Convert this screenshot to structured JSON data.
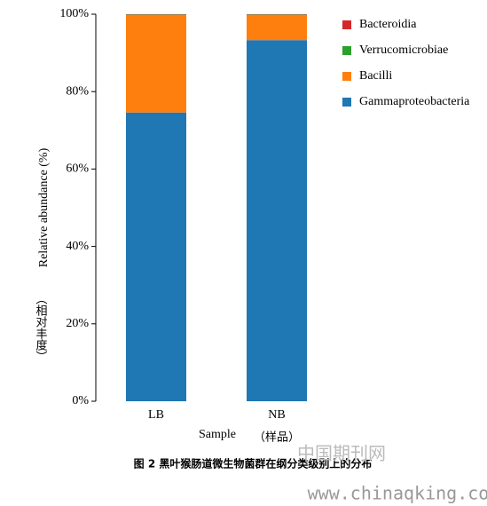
{
  "chart_data": {
    "type": "stacked_bar",
    "y_label": "Relative abundance (%)",
    "y_label_cn": "（相对丰度）",
    "x_label": "Sample",
    "x_label_cn": "（样品）",
    "categories": [
      "LB",
      "NB"
    ],
    "series": [
      {
        "name": "Gammaproteobacteria",
        "color": "#1f77b4",
        "values": [
          74.6,
          93.3
        ]
      },
      {
        "name": "Bacilli",
        "color": "#ff7f0e",
        "values": [
          25.2,
          6.5
        ]
      },
      {
        "name": "Verrucomicrobiae",
        "color": "#2ca02c",
        "values": [
          0.1,
          0.1
        ]
      },
      {
        "name": "Bacteroidia",
        "color": "#d62728",
        "values": [
          0.1,
          0.1
        ]
      }
    ],
    "ylim": [
      0,
      100
    ],
    "yticks": [
      {
        "value": 0,
        "label": "0%"
      },
      {
        "value": 20,
        "label": "20%"
      },
      {
        "value": 40,
        "label": "40%"
      },
      {
        "value": 60,
        "label": "60%"
      },
      {
        "value": 80,
        "label": "80%"
      },
      {
        "value": 100,
        "label": "100%"
      }
    ],
    "legend": "upper right"
  },
  "caption": "图 2 黑叶猴肠道微生物菌群在纲分类级别上的分布",
  "watermark": {
    "cn": "中国期刊网",
    "url": "www.chinaqking.com"
  }
}
